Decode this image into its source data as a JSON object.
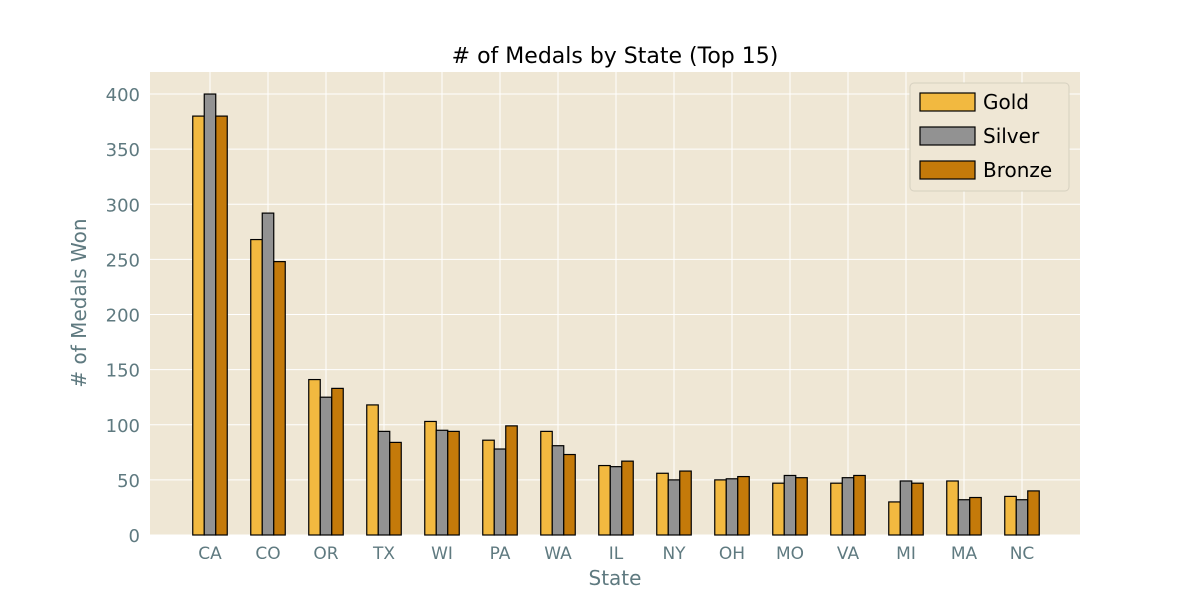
{
  "chart_data": {
    "type": "bar",
    "title": "# of Medals by State (Top 15)",
    "xlabel": "State",
    "ylabel": "# of Medals Won",
    "categories": [
      "CA",
      "CO",
      "OR",
      "TX",
      "WI",
      "PA",
      "WA",
      "IL",
      "NY",
      "OH",
      "MO",
      "VA",
      "MI",
      "MA",
      "NC"
    ],
    "series": [
      {
        "name": "Gold",
        "color": "#f2b940",
        "values": [
          380,
          268,
          141,
          118,
          103,
          86,
          94,
          63,
          56,
          50,
          47,
          47,
          30,
          49,
          35
        ]
      },
      {
        "name": "Silver",
        "color": "#929292",
        "values": [
          400,
          292,
          125,
          94,
          95,
          78,
          81,
          62,
          50,
          51,
          54,
          52,
          49,
          32,
          32
        ]
      },
      {
        "name": "Bronze",
        "color": "#c47a0a",
        "values": [
          380,
          248,
          133,
          84,
          94,
          99,
          73,
          67,
          58,
          53,
          52,
          54,
          47,
          34,
          40
        ]
      }
    ],
    "ylim": [
      0,
      420
    ],
    "yticks": [
      0,
      50,
      100,
      150,
      200,
      250,
      300,
      350,
      400
    ],
    "grid": true,
    "legend_position": "top-right",
    "colors": {
      "plot_background": "#efe7d5",
      "grid": "#ffffff",
      "tick_text": "#5f7a80",
      "bar_edge": "#000000"
    }
  }
}
